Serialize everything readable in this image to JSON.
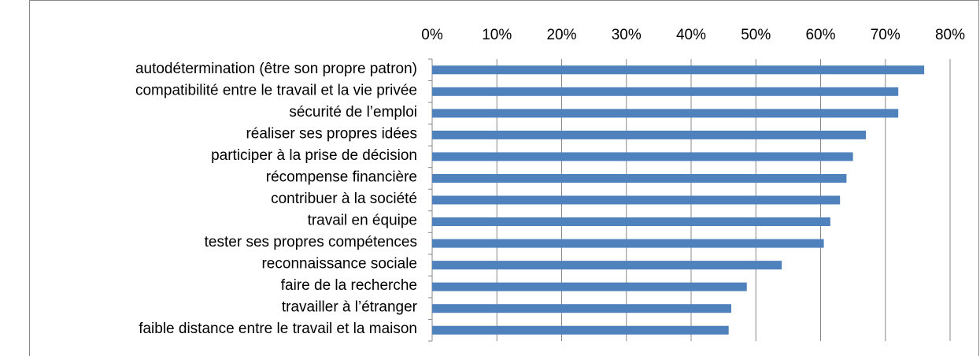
{
  "chart_data": {
    "type": "bar",
    "orientation": "horizontal",
    "categories": [
      "autodétermination (être son propre patron)",
      "compatibilité entre le travail et la vie privée",
      "sécurité de l’emploi",
      "réaliser ses propres idées",
      "participer à la prise de décision",
      "récompense financière",
      "contribuer à la société",
      "travail en équipe",
      "tester ses propres compétences",
      "reconnaissance sociale",
      "faire de la recherche",
      "travailler à l’étranger",
      "faible distance entre le travail et la maison"
    ],
    "values": [
      76,
      72,
      72,
      67,
      65,
      64,
      63,
      61.5,
      60.5,
      54,
      48.6,
      46.2,
      45.8
    ],
    "color": "#4f81bd",
    "xlim": [
      0,
      80
    ],
    "xticks": [
      {
        "value": 0,
        "label": "0%"
      },
      {
        "value": 10,
        "label": "10%"
      },
      {
        "value": 20,
        "label": "20%"
      },
      {
        "value": 30,
        "label": "30%"
      },
      {
        "value": 40,
        "label": "40%"
      },
      {
        "value": 50,
        "label": "50%"
      },
      {
        "value": 60,
        "label": "60%"
      },
      {
        "value": 70,
        "label": "70%"
      },
      {
        "value": 80,
        "label": "80%"
      }
    ],
    "grid": true
  }
}
